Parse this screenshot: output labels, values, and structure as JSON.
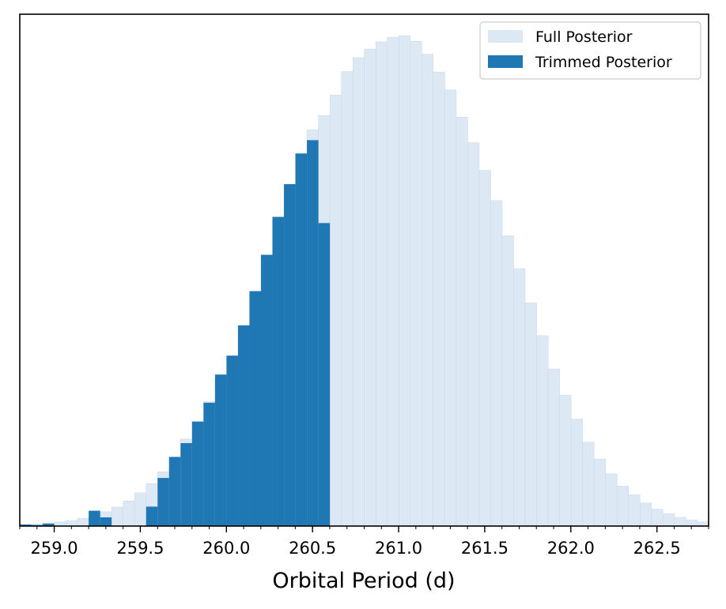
{
  "chart_data": {
    "type": "bar",
    "xlabel": "Orbital Period (d)",
    "ylabel": "",
    "xlim": [
      258.8,
      262.8
    ],
    "ylim": [
      0,
      100
    ],
    "bin_start": 258.8,
    "bin_width": 0.0667,
    "xticks": [
      259.0,
      259.5,
      260.0,
      260.5,
      261.0,
      261.5,
      262.0,
      262.5
    ],
    "xtick_labels": [
      "259.0",
      "259.5",
      "260.0",
      "260.5",
      "261.0",
      "261.5",
      "262.0",
      "262.5"
    ],
    "yticks_shown": false,
    "legend_position": "top-right",
    "series": [
      {
        "name": "Full Posterior",
        "color": "#dce8f3",
        "values": [
          0.3,
          0.4,
          0.5,
          0.8,
          1.1,
          1.5,
          2.0,
          2.8,
          3.7,
          4.9,
          6.5,
          8.3,
          10.6,
          13.5,
          17.0,
          20.5,
          24.3,
          28.8,
          33.2,
          39.2,
          45.7,
          52.8,
          60.4,
          66.8,
          72.6,
          77.4,
          80.2,
          84.2,
          88.8,
          91.5,
          93.2,
          94.6,
          95.5,
          95.8,
          94.7,
          92.2,
          88.7,
          85.2,
          79.9,
          74.9,
          69.5,
          63.6,
          56.7,
          50.3,
          43.6,
          37.2,
          30.7,
          25.6,
          20.9,
          16.4,
          13.1,
          10.2,
          7.8,
          6.1,
          4.5,
          3.3,
          2.4,
          1.7,
          1.2,
          0.8
        ]
      },
      {
        "name": "Trimmed Posterior",
        "color": "#1f77b4",
        "values": [
          0.3,
          0.2,
          0.5,
          0.0,
          0.0,
          0.0,
          3.0,
          1.7,
          0.0,
          0.0,
          0.0,
          3.8,
          9.4,
          13.5,
          16.2,
          20.4,
          24.1,
          29.6,
          33.3,
          39.2,
          45.9,
          53.0,
          60.4,
          66.8,
          72.8,
          75.4,
          59.2,
          0.0,
          0.0,
          0.0,
          0.0,
          0.0,
          0.0,
          0.0,
          0.0,
          0.0,
          0.0,
          0.0,
          0.0,
          0.0,
          0.0,
          0.0,
          0.0,
          0.0,
          0.0,
          0.0,
          0.0,
          0.0,
          0.0,
          0.0,
          0.0,
          0.0,
          0.0,
          0.0,
          0.0,
          0.0,
          0.0,
          0.0,
          0.0,
          0.0
        ]
      }
    ]
  }
}
